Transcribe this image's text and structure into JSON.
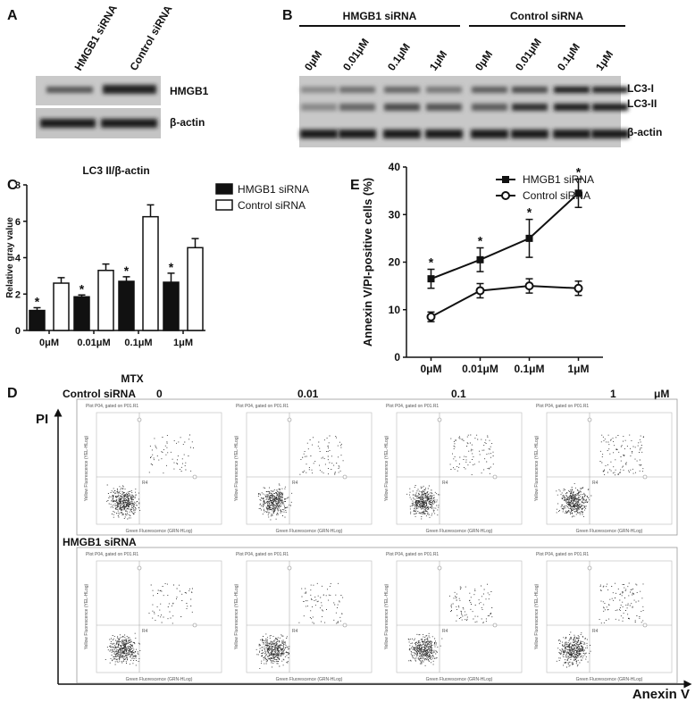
{
  "panels": [
    "A",
    "B",
    "C",
    "D",
    "E"
  ],
  "blot_a": {
    "lanes": [
      "HMGB1 siRNA",
      "Control siRNA"
    ],
    "bands": [
      "HMGB1",
      "β-actin"
    ]
  },
  "blot_b": {
    "groups": [
      "HMGB1 siRNA",
      "Control siRNA"
    ],
    "lanes": [
      "0μM",
      "0.01μM",
      "0.1μM",
      "1μM",
      "0μM",
      "0.01μM",
      "0.1μM",
      "1μM"
    ],
    "bands": [
      "LC3-I",
      "LC3-II",
      "β-actin"
    ]
  },
  "chart_data": [
    {
      "type": "bar",
      "title": "LC3 II/β-actin",
      "y_label": "Relative gray value",
      "categories": [
        "0μM",
        "0.01μM",
        "0.1μM",
        "1μM"
      ],
      "series": [
        {
          "name": "HMGB1 siRNA",
          "color": "#111111",
          "values": [
            1.1,
            1.85,
            2.7,
            2.65
          ],
          "errors": [
            0.15,
            0.1,
            0.25,
            0.5
          ],
          "significance": [
            "*",
            "*",
            "*",
            "*"
          ]
        },
        {
          "name": "Control siRNA",
          "color": "#ffffff",
          "values": [
            2.6,
            3.3,
            6.25,
            4.55
          ],
          "errors": [
            0.3,
            0.35,
            0.65,
            0.5
          ]
        }
      ],
      "ylim": [
        0,
        8
      ],
      "yticks": [
        0,
        2,
        4,
        6,
        8
      ],
      "legend": "right"
    },
    {
      "type": "line",
      "y_label": "Annexin V/PI-positive cells (%)",
      "categories": [
        "0μM",
        "0.01μM",
        "0.1μM",
        "1μM"
      ],
      "series": [
        {
          "name": "HMGB1 siRNA",
          "color": "#111111",
          "marker": "square",
          "values": [
            16.5,
            20.5,
            25,
            34.5
          ],
          "errors": [
            2,
            2.5,
            4,
            3
          ],
          "significance": [
            "*",
            "*",
            "*",
            "*"
          ]
        },
        {
          "name": "Control siRNA",
          "color": "#111111",
          "marker": "circle",
          "values": [
            8.5,
            14,
            15,
            14.5
          ],
          "errors": [
            1,
            1.5,
            1.5,
            1.5
          ]
        }
      ],
      "ylim": [
        0,
        40
      ],
      "yticks": [
        0,
        10,
        20,
        30,
        40
      ],
      "legend": "top"
    }
  ],
  "flow": {
    "treatment": "MTX",
    "rows": [
      "Control siRNA",
      "HMGB1 siRNA"
    ],
    "doses": [
      "0",
      "0.01",
      "0.1",
      "1"
    ],
    "unit": "μM",
    "y_axis": "PI",
    "x_axis": "Anexin V",
    "plot_title": "Plot P04, gated on P01.R1",
    "plot_y_label": "Yellow Fluorescence (YEL-HLog)",
    "plot_x_label": "Green Fluorescence (GRN-HLog)",
    "region": "R4"
  }
}
